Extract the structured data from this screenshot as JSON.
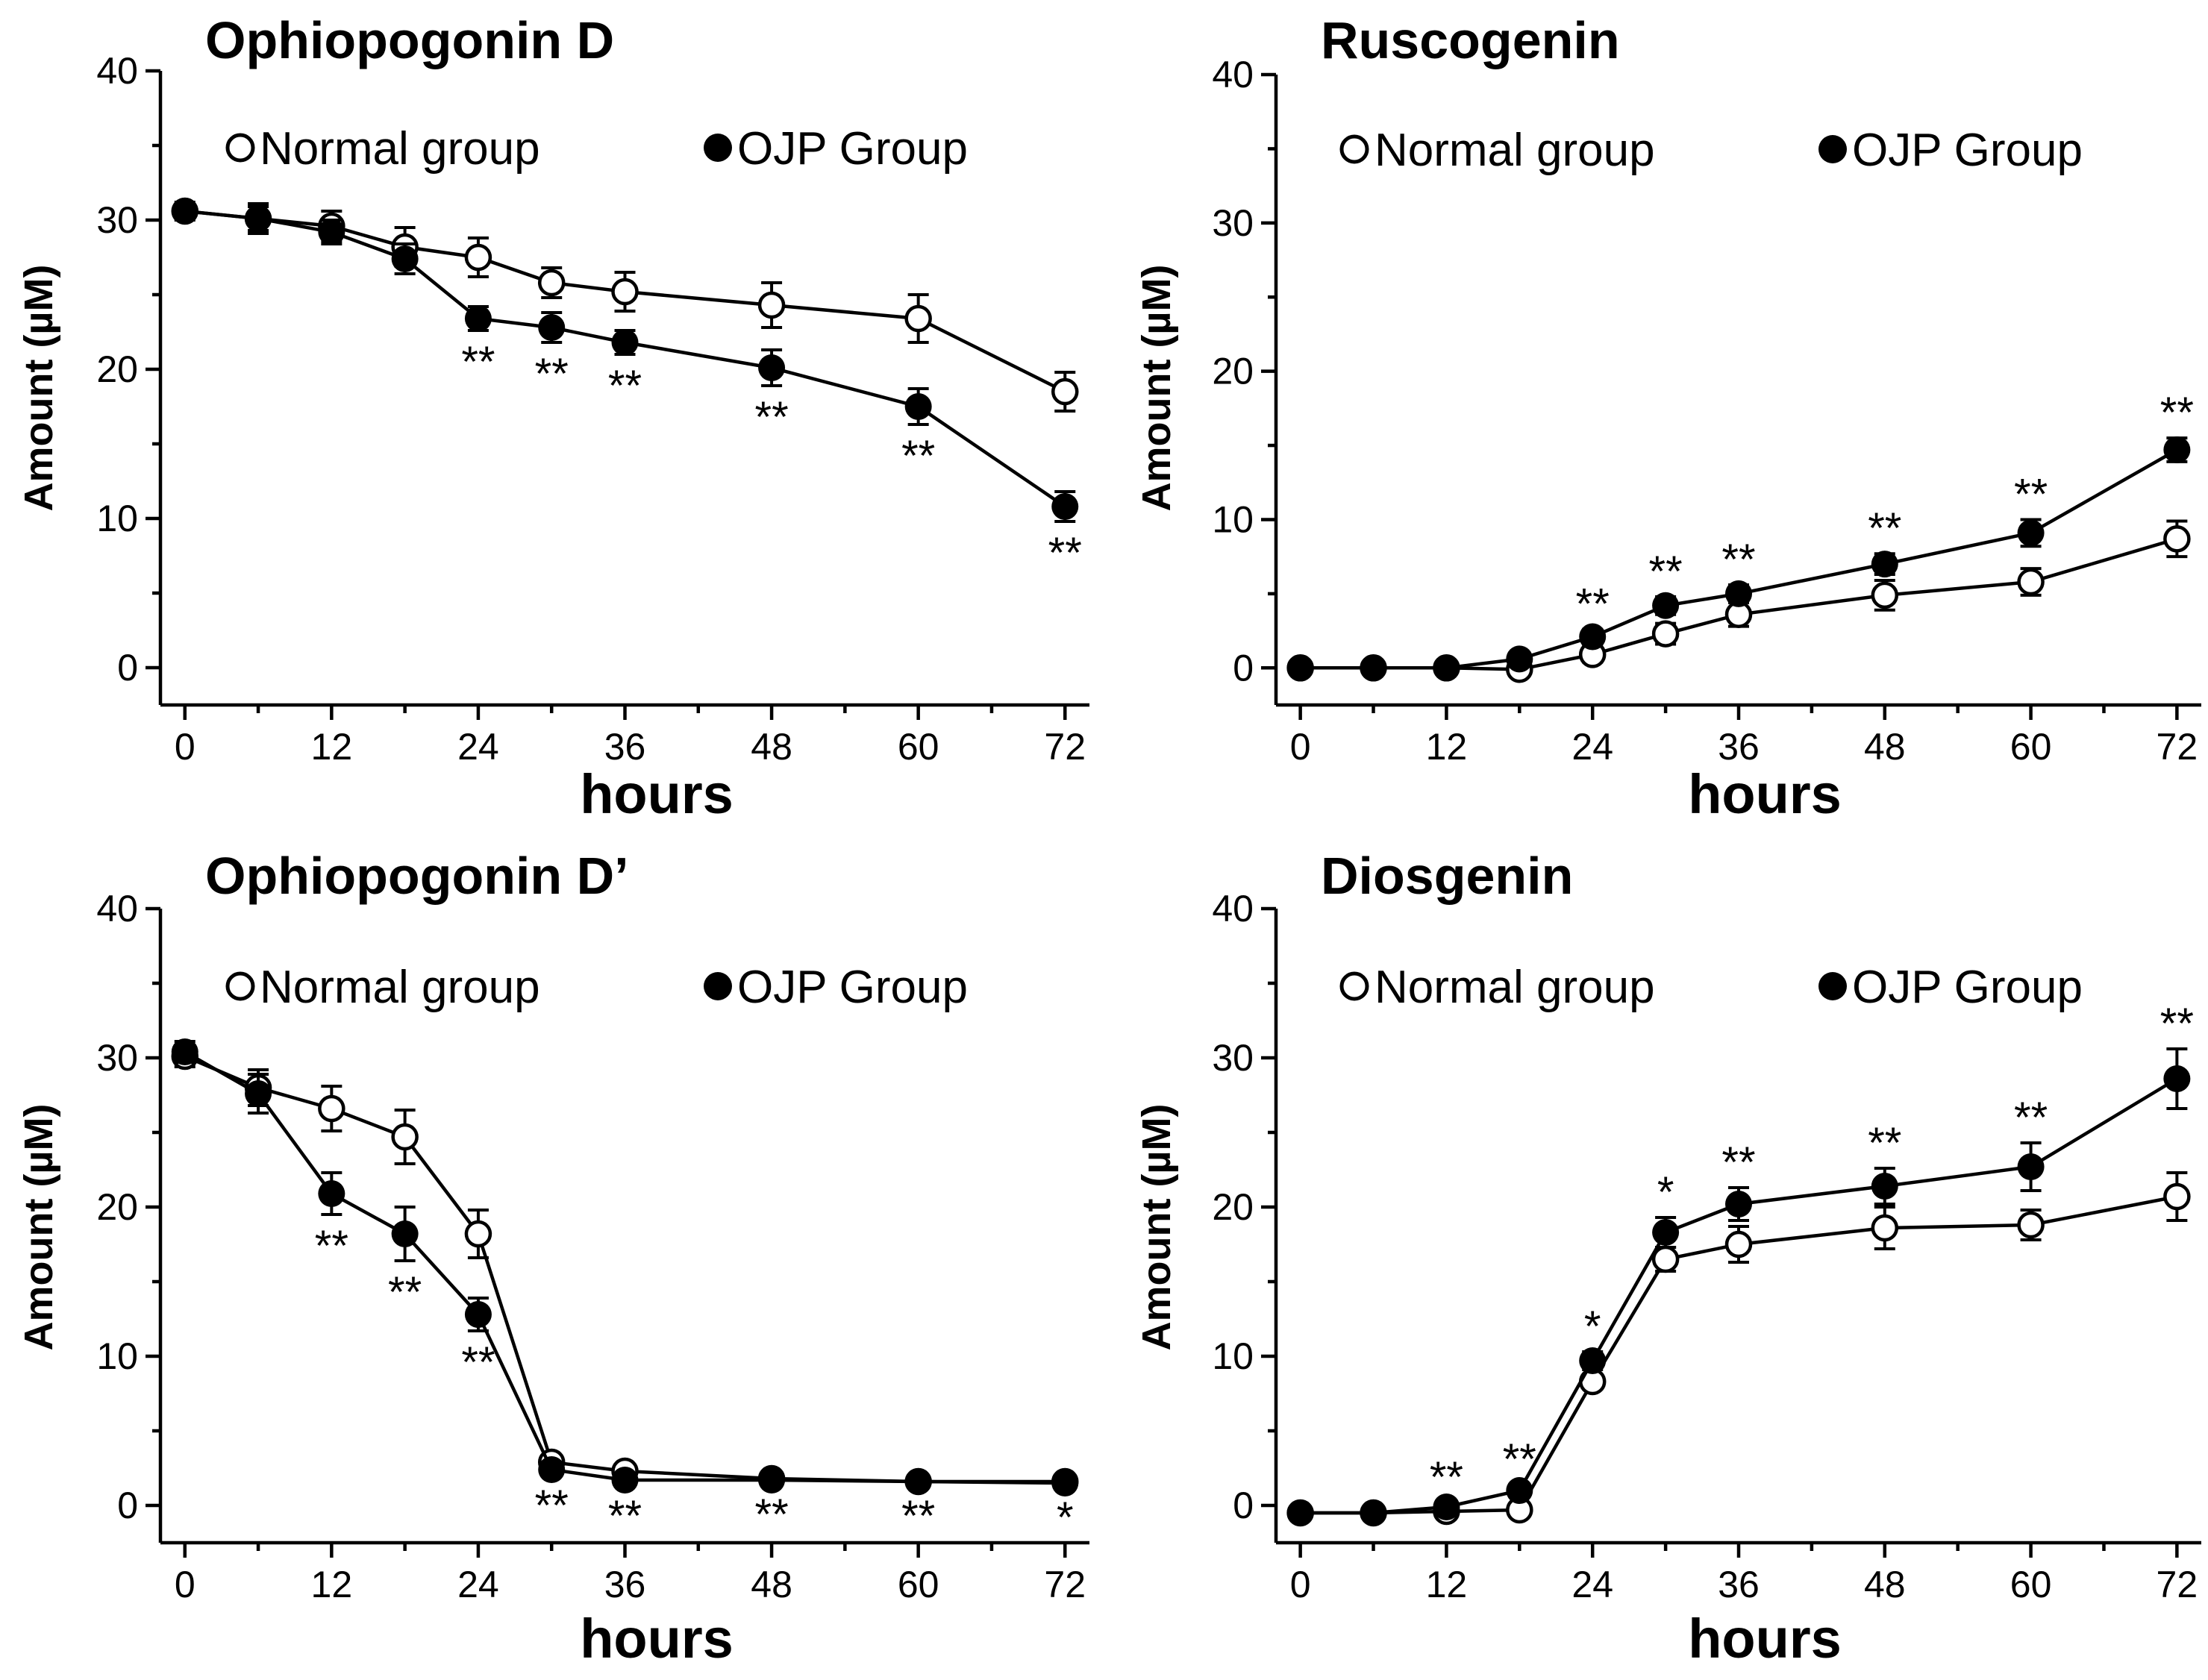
{
  "chart_data": [
    {
      "type": "line",
      "title": "Ophiopogonin D",
      "xlabel": "hours",
      "ylabel": "Amount (µM)",
      "xlim": [
        -2,
        74
      ],
      "ylim": [
        -2.5,
        40
      ],
      "x_ticks": [
        "0",
        "12",
        "24",
        "36",
        "48",
        "60",
        "72"
      ],
      "y_ticks": [
        "0",
        "10",
        "20",
        "30",
        "40"
      ],
      "legend": [
        "Normal group",
        "OJP Group"
      ],
      "series": [
        {
          "name": "Normal group",
          "marker": "open-circle",
          "x": [
            0,
            6,
            12,
            18,
            24,
            30,
            36,
            48,
            60,
            72
          ],
          "y": [
            30.6,
            30.1,
            29.6,
            28.2,
            27.5,
            25.8,
            25.2,
            24.3,
            23.4,
            18.5
          ],
          "err": [
            0.6,
            0.8,
            1.0,
            1.3,
            1.3,
            1.0,
            1.3,
            1.5,
            1.6,
            1.3
          ]
        },
        {
          "name": "OJP Group",
          "marker": "filled-circle",
          "x": [
            0,
            6,
            12,
            18,
            24,
            30,
            36,
            48,
            60,
            72
          ],
          "y": [
            30.6,
            30.1,
            29.2,
            27.4,
            23.4,
            22.8,
            21.8,
            20.1,
            17.5,
            10.8
          ],
          "err": [
            0.5,
            1.0,
            0.8,
            1.0,
            0.8,
            1.0,
            0.8,
            1.2,
            1.2,
            1.0
          ]
        }
      ],
      "annotations": [
        {
          "x": 24,
          "text": "**"
        },
        {
          "x": 30,
          "text": "**"
        },
        {
          "x": 36,
          "text": "**"
        },
        {
          "x": 48,
          "text": "**"
        },
        {
          "x": 60,
          "text": "**"
        },
        {
          "x": 72,
          "text": "**"
        }
      ]
    },
    {
      "type": "line",
      "title": "Ruscogenin",
      "xlabel": "hours",
      "ylabel": "Amount (µM)",
      "xlim": [
        -2,
        74
      ],
      "ylim": [
        -2.5,
        40
      ],
      "x_ticks": [
        "0",
        "12",
        "24",
        "36",
        "48",
        "60",
        "72"
      ],
      "y_ticks": [
        "0",
        "10",
        "20",
        "30",
        "40"
      ],
      "legend": [
        "Normal group",
        "OJP Group"
      ],
      "series": [
        {
          "name": "Normal group",
          "marker": "open-circle",
          "x": [
            0,
            6,
            12,
            18,
            24,
            30,
            36,
            48,
            60,
            72
          ],
          "y": [
            0,
            0,
            0,
            -0.1,
            0.9,
            2.3,
            3.6,
            4.9,
            5.8,
            8.7
          ],
          "err": [
            0.1,
            0.1,
            0.1,
            0.3,
            0.5,
            0.7,
            0.8,
            1.0,
            0.9,
            1.2
          ]
        },
        {
          "name": "OJP Group",
          "marker": "filled-circle",
          "x": [
            0,
            6,
            12,
            18,
            24,
            30,
            36,
            48,
            60,
            72
          ],
          "y": [
            0,
            0,
            0,
            0.6,
            2.1,
            4.2,
            5.0,
            7.0,
            9.1,
            14.7
          ],
          "err": [
            0.1,
            0.1,
            0.1,
            0.3,
            0.5,
            0.6,
            0.6,
            0.7,
            0.9,
            0.8
          ]
        }
      ],
      "annotations": [
        {
          "x": 24,
          "text": "**"
        },
        {
          "x": 30,
          "text": "**"
        },
        {
          "x": 36,
          "text": "**"
        },
        {
          "x": 48,
          "text": "**"
        },
        {
          "x": 60,
          "text": "**"
        },
        {
          "x": 72,
          "text": "**"
        }
      ]
    },
    {
      "type": "line",
      "title": "Ophiopogonin D’",
      "xlabel": "hours",
      "ylabel": "Amount (µM)",
      "xlim": [
        -2,
        74
      ],
      "ylim": [
        -2.5,
        40
      ],
      "x_ticks": [
        "0",
        "12",
        "24",
        "36",
        "48",
        "60",
        "72"
      ],
      "y_ticks": [
        "0",
        "10",
        "20",
        "30",
        "40"
      ],
      "legend": [
        "Normal group",
        "OJP Group"
      ],
      "series": [
        {
          "name": "Normal group",
          "marker": "open-circle",
          "x": [
            0,
            6,
            12,
            18,
            24,
            30,
            36,
            48,
            60,
            72
          ],
          "y": [
            30.1,
            28.0,
            26.6,
            24.7,
            18.2,
            2.9,
            2.3,
            1.8,
            1.6,
            1.6
          ],
          "err": [
            0.7,
            1.2,
            1.5,
            1.8,
            1.6,
            0.3,
            0.3,
            0.2,
            0.2,
            0.2
          ]
        },
        {
          "name": "OJP Group",
          "marker": "filled-circle",
          "x": [
            0,
            6,
            12,
            18,
            24,
            30,
            36,
            48,
            60,
            72
          ],
          "y": [
            30.4,
            27.6,
            20.9,
            18.2,
            12.8,
            2.4,
            1.7,
            1.7,
            1.6,
            1.5
          ],
          "err": [
            0.7,
            1.3,
            1.4,
            1.8,
            1.1,
            0.3,
            0.3,
            0.2,
            0.2,
            0.2
          ]
        }
      ],
      "annotations": [
        {
          "x": 12,
          "text": "**"
        },
        {
          "x": 18,
          "text": "**"
        },
        {
          "x": 24,
          "text": "**"
        },
        {
          "x": 30,
          "text": "**"
        },
        {
          "x": 36,
          "text": "**"
        },
        {
          "x": 48,
          "text": "**"
        },
        {
          "x": 60,
          "text": "**"
        },
        {
          "x": 72,
          "text": "*"
        }
      ]
    },
    {
      "type": "line",
      "title": "Diosgenin",
      "xlabel": "hours",
      "ylabel": "Amount (µM)",
      "xlim": [
        -2,
        74
      ],
      "ylim": [
        -2.5,
        40
      ],
      "x_ticks": [
        "0",
        "12",
        "24",
        "36",
        "48",
        "60",
        "72"
      ],
      "y_ticks": [
        "0",
        "10",
        "20",
        "30",
        "40"
      ],
      "legend": [
        "Normal group",
        "OJP Group"
      ],
      "series": [
        {
          "name": "Normal group",
          "marker": "open-circle",
          "x": [
            0,
            6,
            12,
            18,
            24,
            30,
            36,
            48,
            60,
            72
          ],
          "y": [
            -0.5,
            -0.5,
            -0.4,
            -0.3,
            8.3,
            16.5,
            17.5,
            18.6,
            18.8,
            20.7
          ],
          "err": [
            0.2,
            0.2,
            0.3,
            0.3,
            0.5,
            0.8,
            1.2,
            1.4,
            1.0,
            1.6
          ]
        },
        {
          "name": "OJP Group",
          "marker": "filled-circle",
          "x": [
            0,
            6,
            12,
            18,
            24,
            30,
            36,
            48,
            60,
            72
          ],
          "y": [
            -0.5,
            -0.5,
            -0.1,
            1.0,
            9.7,
            18.3,
            20.2,
            21.4,
            22.7,
            28.6
          ],
          "err": [
            0.2,
            0.2,
            0.3,
            0.4,
            0.6,
            1.0,
            1.1,
            1.2,
            1.6,
            2.0
          ]
        }
      ],
      "annotations": [
        {
          "x": 12,
          "text": "**"
        },
        {
          "x": 18,
          "text": "**"
        },
        {
          "x": 24,
          "text": "*"
        },
        {
          "x": 30,
          "text": "*"
        },
        {
          "x": 36,
          "text": "**"
        },
        {
          "x": 48,
          "text": "**"
        },
        {
          "x": 60,
          "text": "**"
        },
        {
          "x": 72,
          "text": "**"
        }
      ]
    }
  ]
}
